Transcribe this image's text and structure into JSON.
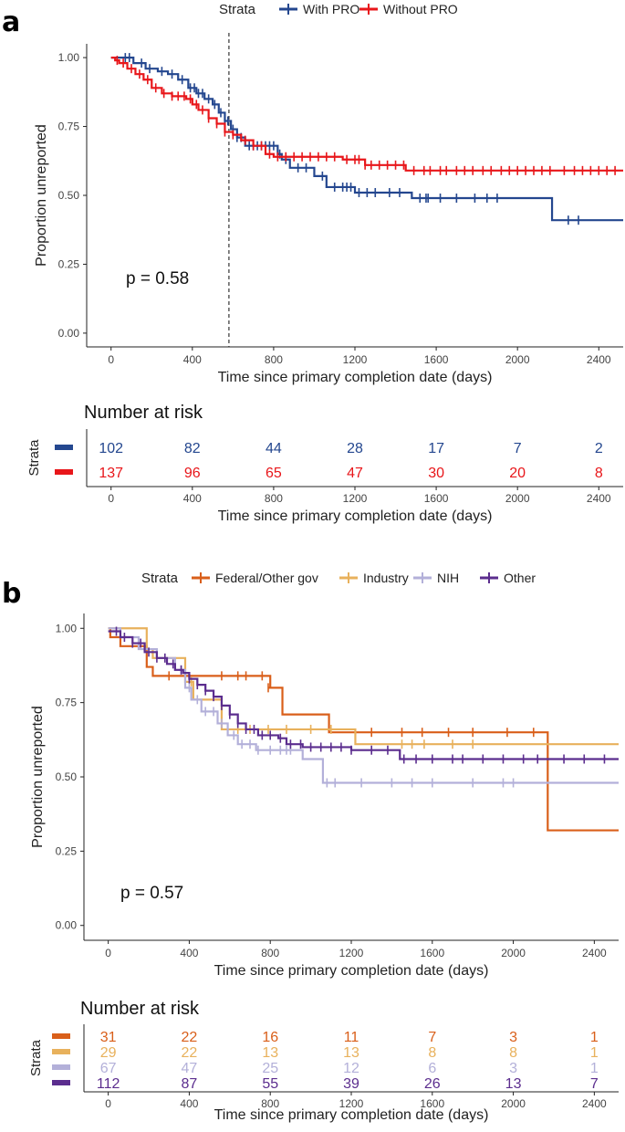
{
  "chart_data": [
    {
      "panel": "a",
      "type": "line",
      "subtype": "kaplan-meier",
      "legend_title": "Strata",
      "xlabel": "Time since primary completion date (days)",
      "ylabel": "Proportion unreported",
      "xticks": [
        0,
        400,
        800,
        1200,
        1600,
        2000,
        2400
      ],
      "xtick_labels": [
        "0",
        "400",
        "800",
        "1200",
        "1600",
        "2000",
        "2400"
      ],
      "yticks": [
        0,
        0.25,
        0.5,
        0.75,
        1.0
      ],
      "ytick_labels": [
        "0.00",
        "0.25",
        "0.50",
        "0.75",
        "1.00"
      ],
      "xlim": [
        -120,
        2520
      ],
      "ylim": [
        -0.05,
        1.05
      ],
      "pvalue": "p = 0.58",
      "vline_x": 580,
      "series": [
        {
          "name": "With PRO",
          "color": "#24478f",
          "steps": [
            [
              0,
              1.0
            ],
            [
              110,
              0.98
            ],
            [
              170,
              0.96
            ],
            [
              230,
              0.95
            ],
            [
              280,
              0.94
            ],
            [
              330,
              0.92
            ],
            [
              380,
              0.89
            ],
            [
              420,
              0.87
            ],
            [
              460,
              0.85
            ],
            [
              500,
              0.83
            ],
            [
              530,
              0.8
            ],
            [
              560,
              0.77
            ],
            [
              590,
              0.74
            ],
            [
              620,
              0.71
            ],
            [
              660,
              0.68
            ],
            [
              820,
              0.65
            ],
            [
              840,
              0.63
            ],
            [
              880,
              0.6
            ],
            [
              1000,
              0.57
            ],
            [
              1060,
              0.53
            ],
            [
              1200,
              0.51
            ],
            [
              1480,
              0.49
            ],
            [
              2170,
              0.41
            ],
            [
              2520,
              0.41
            ]
          ],
          "censor_x": [
            70,
            90,
            150,
            190,
            250,
            300,
            350,
            390,
            410,
            430,
            450,
            480,
            510,
            540,
            560,
            575,
            600,
            620,
            640,
            680,
            700,
            720,
            740,
            760,
            780,
            800,
            830,
            860,
            920,
            960,
            1040,
            1100,
            1140,
            1160,
            1180,
            1220,
            1260,
            1300,
            1370,
            1420,
            1520,
            1550,
            1560,
            1620,
            1700,
            1790,
            1850,
            1900,
            2250,
            2300
          ],
          "risk": [
            "102",
            "82",
            "44",
            "28",
            "17",
            "7",
            "2"
          ]
        },
        {
          "name": "Without PRO",
          "color": "#e8161a",
          "steps": [
            [
              0,
              1.0
            ],
            [
              20,
              0.99
            ],
            [
              40,
              0.98
            ],
            [
              80,
              0.96
            ],
            [
              120,
              0.94
            ],
            [
              160,
              0.92
            ],
            [
              200,
              0.89
            ],
            [
              250,
              0.87
            ],
            [
              300,
              0.86
            ],
            [
              370,
              0.85
            ],
            [
              400,
              0.83
            ],
            [
              430,
              0.81
            ],
            [
              480,
              0.78
            ],
            [
              520,
              0.76
            ],
            [
              560,
              0.73
            ],
            [
              600,
              0.72
            ],
            [
              640,
              0.7
            ],
            [
              700,
              0.68
            ],
            [
              760,
              0.65
            ],
            [
              800,
              0.64
            ],
            [
              1140,
              0.63
            ],
            [
              1250,
              0.61
            ],
            [
              1450,
              0.59
            ],
            [
              2520,
              0.59
            ]
          ],
          "censor_x": [
            30,
            60,
            100,
            140,
            180,
            220,
            260,
            300,
            330,
            360,
            390,
            420,
            450,
            480,
            520,
            560,
            600,
            660,
            700,
            740,
            780,
            820,
            860,
            900,
            940,
            980,
            1020,
            1060,
            1100,
            1160,
            1200,
            1220,
            1250,
            1280,
            1320,
            1360,
            1400,
            1440,
            1490,
            1540,
            1570,
            1620,
            1650,
            1700,
            1740,
            1780,
            1830,
            1870,
            1920,
            1960,
            2000,
            2040,
            2080,
            2120,
            2160,
            2230,
            2280,
            2320,
            2360,
            2400,
            2440,
            2480
          ],
          "risk": [
            "137",
            "96",
            "65",
            "47",
            "30",
            "20",
            "8"
          ]
        }
      ],
      "risk_table": {
        "title": "Number at risk",
        "ylabel": "Strata",
        "xlabel": "Time since primary completion date (days)"
      }
    },
    {
      "panel": "b",
      "type": "line",
      "subtype": "kaplan-meier",
      "legend_title": "Strata",
      "xlabel": "Time since primary completion date (days)",
      "ylabel": "Proportion unreported",
      "xticks": [
        0,
        400,
        800,
        1200,
        1600,
        2000,
        2400
      ],
      "xtick_labels": [
        "0",
        "400",
        "800",
        "1200",
        "1600",
        "2000",
        "2400"
      ],
      "yticks": [
        0,
        0.25,
        0.5,
        0.75,
        1.0
      ],
      "ytick_labels": [
        "0.00",
        "0.25",
        "0.50",
        "0.75",
        "1.00"
      ],
      "xlim": [
        -120,
        2520
      ],
      "ylim": [
        -0.05,
        1.05
      ],
      "pvalue": "p = 0.57",
      "series": [
        {
          "name": "Federal/Other gov",
          "color": "#d95f1a",
          "steps": [
            [
              0,
              1.0
            ],
            [
              10,
              0.97
            ],
            [
              60,
              0.94
            ],
            [
              190,
              0.87
            ],
            [
              220,
              0.84
            ],
            [
              800,
              0.8
            ],
            [
              790,
              0.8
            ],
            [
              860,
              0.71
            ],
            [
              1090,
              0.65
            ],
            [
              2170,
              0.32
            ],
            [
              2520,
              0.32
            ]
          ],
          "censor_x": [
            300,
            560,
            640,
            680,
            760,
            790,
            1300,
            1450,
            1550,
            1680,
            1800,
            1970,
            2100
          ],
          "risk": [
            "31",
            "22",
            "16",
            "11",
            "7",
            "3",
            "1"
          ]
        },
        {
          "name": "Industry",
          "color": "#e8b15c",
          "steps": [
            [
              0,
              1.0
            ],
            [
              190,
              0.93
            ],
            [
              220,
              0.9
            ],
            [
              380,
              0.82
            ],
            [
              420,
              0.76
            ],
            [
              560,
              0.66
            ],
            [
              1220,
              0.61
            ],
            [
              2520,
              0.61
            ]
          ],
          "censor_x": [
            410,
            640,
            700,
            790,
            880,
            1000,
            1100,
            1450,
            1500,
            1560,
            1700,
            1800
          ],
          "risk": [
            "29",
            "22",
            "13",
            "13",
            "8",
            "8",
            "1"
          ]
        },
        {
          "name": "NIH",
          "color": "#b3b0d9",
          "steps": [
            [
              0,
              1.0
            ],
            [
              60,
              0.97
            ],
            [
              150,
              0.93
            ],
            [
              240,
              0.9
            ],
            [
              330,
              0.86
            ],
            [
              380,
              0.8
            ],
            [
              410,
              0.76
            ],
            [
              460,
              0.72
            ],
            [
              540,
              0.68
            ],
            [
              590,
              0.64
            ],
            [
              640,
              0.61
            ],
            [
              730,
              0.59
            ],
            [
              960,
              0.56
            ],
            [
              1060,
              0.48
            ],
            [
              2520,
              0.48
            ]
          ],
          "censor_x": [
            360,
            400,
            440,
            480,
            520,
            560,
            620,
            660,
            700,
            740,
            800,
            850,
            880,
            900,
            1080,
            1120,
            1250,
            1400,
            1500,
            1600,
            1800,
            1950,
            2000
          ],
          "risk": [
            "67",
            "47",
            "25",
            "12",
            "6",
            "3",
            "1"
          ]
        },
        {
          "name": "Other",
          "color": "#5b2d8e",
          "steps": [
            [
              0,
              0.99
            ],
            [
              60,
              0.97
            ],
            [
              120,
              0.95
            ],
            [
              180,
              0.92
            ],
            [
              240,
              0.9
            ],
            [
              290,
              0.88
            ],
            [
              330,
              0.86
            ],
            [
              370,
              0.85
            ],
            [
              400,
              0.83
            ],
            [
              440,
              0.81
            ],
            [
              480,
              0.79
            ],
            [
              520,
              0.77
            ],
            [
              560,
              0.74
            ],
            [
              600,
              0.71
            ],
            [
              640,
              0.68
            ],
            [
              680,
              0.66
            ],
            [
              740,
              0.64
            ],
            [
              840,
              0.63
            ],
            [
              880,
              0.61
            ],
            [
              960,
              0.6
            ],
            [
              1200,
              0.59
            ],
            [
              1440,
              0.56
            ],
            [
              2520,
              0.56
            ]
          ],
          "censor_x": [
            40,
            80,
            120,
            160,
            200,
            240,
            280,
            320,
            360,
            400,
            440,
            480,
            520,
            560,
            600,
            640,
            680,
            720,
            760,
            800,
            850,
            900,
            950,
            1000,
            1050,
            1100,
            1150,
            1200,
            1300,
            1380,
            1460,
            1520,
            1600,
            1700,
            1750,
            1850,
            1950,
            2050,
            2120,
            2250,
            2350,
            2450
          ],
          "risk": [
            "112",
            "87",
            "55",
            "39",
            "26",
            "13",
            "7"
          ]
        }
      ],
      "risk_table": {
        "title": "Number at risk",
        "ylabel": "Strata",
        "xlabel": "Time since primary completion date (days)"
      }
    }
  ]
}
